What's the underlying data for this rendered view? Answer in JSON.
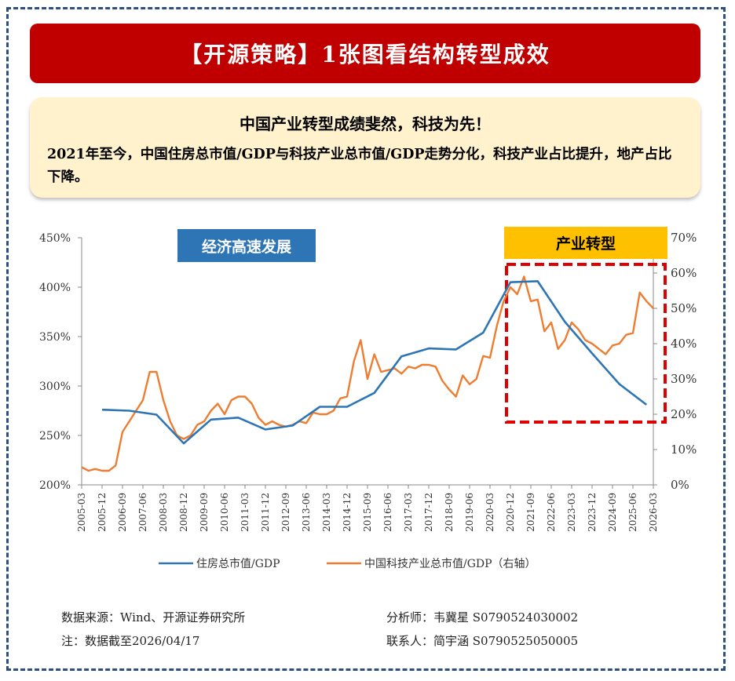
{
  "banner": {
    "title": "【开源策略】1张图看结构转型成效"
  },
  "summary": {
    "headline": "中国产业转型成绩斐然，科技为先！",
    "body": "2021年至今，中国住房总市值/GDP与科技产业总市值/GDP走势分化，科技产业占比提升，地产占比下降。"
  },
  "footer": {
    "source": "数据来源：Wind、开源证券研究所",
    "note": "注：数据截至2026/04/17",
    "analyst": "分析师：韦冀星  S0790524030002",
    "contact": "联系人：简宇涵  S0790525050005"
  },
  "colors": {
    "banner": "#c00000",
    "summary_bg": "#fff2cc",
    "housing_line": "#2e75b6",
    "tech_line": "#ed7d31",
    "left_label_bg": "#2e75b6",
    "right_label_bg": "#ffc000",
    "highlight_box": "#e00000",
    "frame": "#2e4f7d"
  },
  "chart_data": {
    "type": "line",
    "title": "",
    "x_ticks": [
      "2005-03",
      "2005-12",
      "2006-09",
      "2007-06",
      "2008-03",
      "2008-12",
      "2009-09",
      "2010-06",
      "2011-03",
      "2011-12",
      "2012-09",
      "2013-06",
      "2014-03",
      "2014-12",
      "2015-09",
      "2016-06",
      "2017-03",
      "2017-12",
      "2018-09",
      "2019-06",
      "2020-03",
      "2020-12",
      "2021-09",
      "2022-06",
      "2023-03",
      "2023-12",
      "2024-09",
      "2025-06",
      "2026-03"
    ],
    "y_left": {
      "ticks": [
        "200%",
        "250%",
        "300%",
        "350%",
        "400%",
        "450%"
      ],
      "range": [
        200,
        450
      ]
    },
    "y_right": {
      "ticks": [
        "0%",
        "10%",
        "20%",
        "30%",
        "40%",
        "50%",
        "60%",
        "70%"
      ],
      "range": [
        0,
        70
      ]
    },
    "annotations": {
      "left_label": "经济高速发展",
      "right_label": "产业转型"
    },
    "legend": {
      "position": "bottom"
    },
    "series": [
      {
        "name": "住房总市值/GDP",
        "axis": "left",
        "points": [
          [
            "2005-12",
            276
          ],
          [
            "2006-12",
            275
          ],
          [
            "2007-12",
            271
          ],
          [
            "2008-12",
            242
          ],
          [
            "2009-12",
            266
          ],
          [
            "2010-12",
            268
          ],
          [
            "2011-12",
            256
          ],
          [
            "2012-12",
            260
          ],
          [
            "2013-12",
            279
          ],
          [
            "2014-12",
            279
          ],
          [
            "2015-12",
            293
          ],
          [
            "2016-12",
            330
          ],
          [
            "2017-12",
            338
          ],
          [
            "2018-12",
            337
          ],
          [
            "2019-12",
            354
          ],
          [
            "2020-12",
            405
          ],
          [
            "2021-12",
            406
          ],
          [
            "2022-12",
            365
          ],
          [
            "2023-12",
            333
          ],
          [
            "2024-12",
            302
          ],
          [
            "2025-12",
            281
          ]
        ]
      },
      {
        "name": "中国科技产业总市值/GDP（右轴）",
        "axis": "right",
        "points": [
          [
            "2005-03",
            5
          ],
          [
            "2005-06",
            4
          ],
          [
            "2005-09",
            4.5
          ],
          [
            "2005-12",
            4
          ],
          [
            "2006-03",
            4
          ],
          [
            "2006-06",
            5.5
          ],
          [
            "2006-09",
            15
          ],
          [
            "2006-12",
            18
          ],
          [
            "2007-03",
            21
          ],
          [
            "2007-06",
            24
          ],
          [
            "2007-09",
            32
          ],
          [
            "2007-12",
            32
          ],
          [
            "2008-03",
            24
          ],
          [
            "2008-06",
            18
          ],
          [
            "2008-09",
            14
          ],
          [
            "2008-12",
            13
          ],
          [
            "2009-03",
            14
          ],
          [
            "2009-06",
            17
          ],
          [
            "2009-09",
            18
          ],
          [
            "2009-12",
            21
          ],
          [
            "2010-03",
            23
          ],
          [
            "2010-06",
            20
          ],
          [
            "2010-09",
            24
          ],
          [
            "2010-12",
            25
          ],
          [
            "2011-03",
            25
          ],
          [
            "2011-06",
            23
          ],
          [
            "2011-09",
            19
          ],
          [
            "2011-12",
            17
          ],
          [
            "2012-03",
            18
          ],
          [
            "2012-06",
            17
          ],
          [
            "2012-09",
            16.5
          ],
          [
            "2012-12",
            17
          ],
          [
            "2013-03",
            18
          ],
          [
            "2013-06",
            17.5
          ],
          [
            "2013-09",
            20.5
          ],
          [
            "2013-12",
            20
          ],
          [
            "2014-03",
            20
          ],
          [
            "2014-06",
            21
          ],
          [
            "2014-09",
            24.5
          ],
          [
            "2014-12",
            25
          ],
          [
            "2015-03",
            35
          ],
          [
            "2015-06",
            41
          ],
          [
            "2015-09",
            30
          ],
          [
            "2015-12",
            37
          ],
          [
            "2016-03",
            32
          ],
          [
            "2016-06",
            32.5
          ],
          [
            "2016-09",
            33
          ],
          [
            "2016-12",
            31.5
          ],
          [
            "2017-03",
            33.5
          ],
          [
            "2017-06",
            33
          ],
          [
            "2017-09",
            34
          ],
          [
            "2017-12",
            34
          ],
          [
            "2018-03",
            33.5
          ],
          [
            "2018-06",
            29.5
          ],
          [
            "2018-09",
            27
          ],
          [
            "2018-12",
            25
          ],
          [
            "2019-03",
            31
          ],
          [
            "2019-06",
            28.5
          ],
          [
            "2019-09",
            30
          ],
          [
            "2019-12",
            36.5
          ],
          [
            "2020-03",
            36
          ],
          [
            "2020-06",
            45
          ],
          [
            "2020-09",
            52
          ],
          [
            "2020-12",
            56
          ],
          [
            "2021-03",
            54
          ],
          [
            "2021-06",
            59
          ],
          [
            "2021-09",
            52
          ],
          [
            "2021-12",
            52.5
          ],
          [
            "2022-03",
            43.5
          ],
          [
            "2022-06",
            46
          ],
          [
            "2022-09",
            38.5
          ],
          [
            "2022-12",
            41
          ],
          [
            "2023-03",
            46
          ],
          [
            "2023-06",
            44
          ],
          [
            "2023-09",
            41
          ],
          [
            "2023-12",
            40
          ],
          [
            "2024-03",
            38.5
          ],
          [
            "2024-06",
            37
          ],
          [
            "2024-09",
            39.5
          ],
          [
            "2024-12",
            40
          ],
          [
            "2025-03",
            42.5
          ],
          [
            "2025-06",
            43
          ],
          [
            "2025-09",
            54.5
          ],
          [
            "2025-12",
            52
          ],
          [
            "2026-03",
            50
          ]
        ]
      }
    ]
  }
}
